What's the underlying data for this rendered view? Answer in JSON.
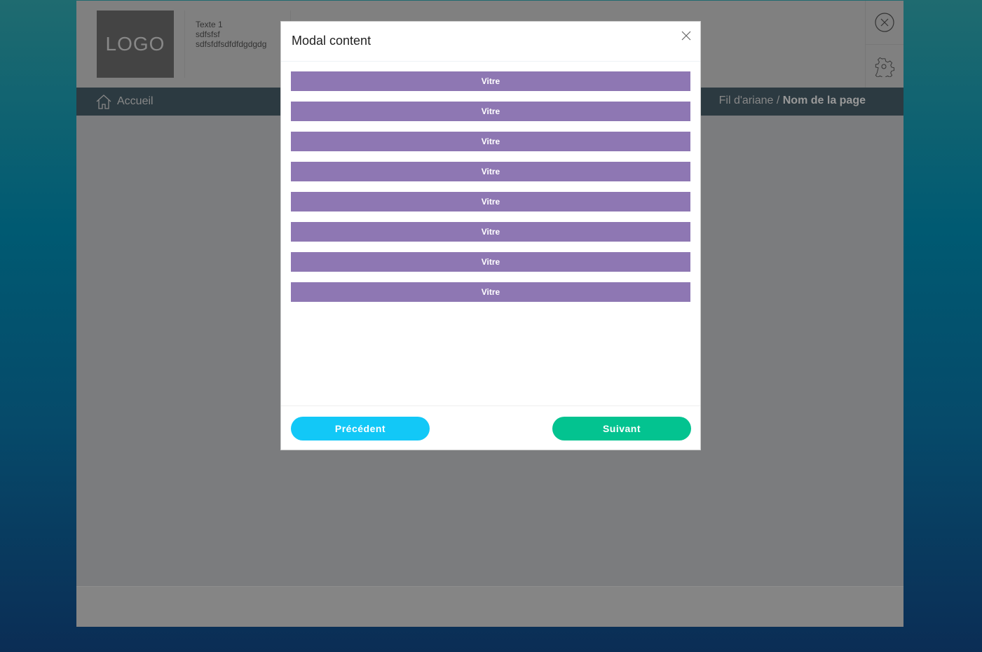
{
  "header": {
    "logo": "LOGO",
    "text_lines": [
      "Texte 1",
      "sdfsfsf",
      "sdfsfdfsdfdfdgdgdg"
    ]
  },
  "nav": {
    "home": "Accueil",
    "breadcrumb": "Fil d'ariane",
    "separator": "/",
    "page": "Nom de la page"
  },
  "modal": {
    "title": "Modal content",
    "items": [
      "Vitre",
      "Vitre",
      "Vitre",
      "Vitre",
      "Vitre",
      "Vitre",
      "Vitre",
      "Vitre"
    ],
    "prev": "Précédent",
    "next": "Suivant"
  },
  "colors": {
    "item": "#8e77b3",
    "prev": "#12c8f7",
    "next": "#03c390"
  }
}
